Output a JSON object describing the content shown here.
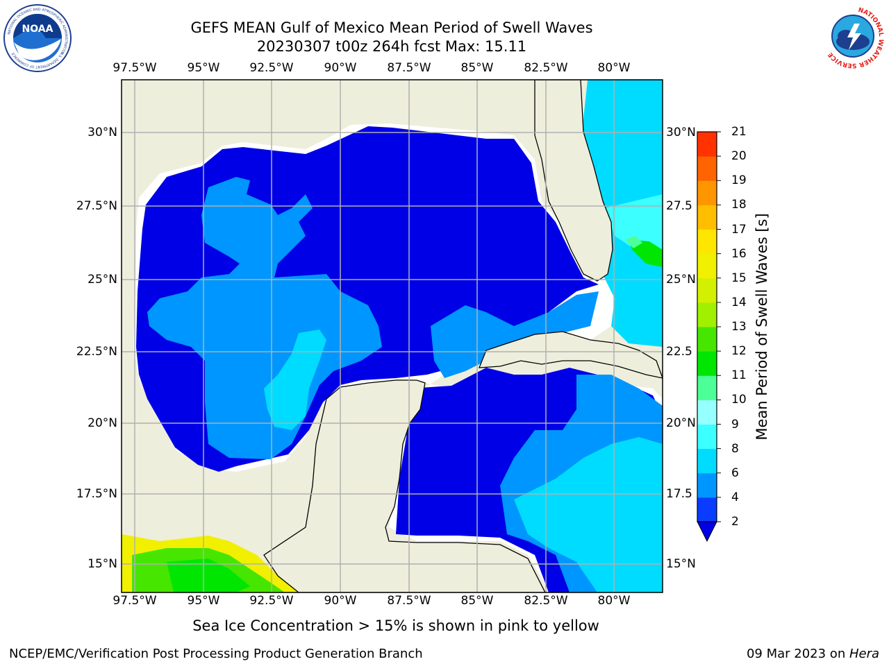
{
  "title": {
    "line1": "GEFS MEAN Gulf of Mexico Mean Period of Swell Waves",
    "line2": "20230307 t00z 264h fcst   Max: 15.11"
  },
  "logos": {
    "left": "NOAA",
    "left_ring_top": "NATIONAL OCEANIC AND ATMOSPHERIC ADMINISTRATION",
    "left_ring_bottom": "U.S. DEPARTMENT OF COMMERCE",
    "right_ring": "NATIONAL WEATHER SERVICE"
  },
  "map": {
    "lon_labels": [
      "97.5°W",
      "95°W",
      "92.5°W",
      "90°W",
      "87.5°W",
      "85°W",
      "82.5°W",
      "80°W"
    ],
    "lat_labels_left": [
      "30°N",
      "27.5°N",
      "25°N",
      "22.5°N",
      "20°N",
      "17.5°N",
      "15°N"
    ],
    "lat_labels_right": [
      "30°N",
      "27.5",
      "25°N",
      "22.5",
      "20°N",
      "17.5",
      "15°N"
    ],
    "colors": {
      "land": "#eeeedc",
      "ocean_white": "#ffffff",
      "grid": "#b0b0b0"
    }
  },
  "colorbar": {
    "label": "Mean Period of Swell Waves [s]",
    "ticks": [
      "2",
      "4",
      "6",
      "8",
      "9",
      "10",
      "11",
      "12",
      "13",
      "14",
      "15",
      "16",
      "17",
      "18",
      "19",
      "20",
      "21"
    ],
    "colors": [
      "#0a3cff",
      "#0096ff",
      "#00dcff",
      "#3cffff",
      "#96ffff",
      "#4cff96",
      "#00e600",
      "#46e600",
      "#a0f000",
      "#d2f000",
      "#f0f000",
      "#ffe600",
      "#ffbe00",
      "#ff9600",
      "#ff6400",
      "#ff3200",
      "#ff0000"
    ],
    "under_color": "#0000e6"
  },
  "sea_ice_note": "Sea Ice Concentration > 15% is shown in pink to yellow",
  "footer": {
    "left": "NCEP/EMC/Verification Post Processing Product Generation Branch",
    "right_prefix": "09 Mar 2023 on ",
    "right_host": "Hera"
  }
}
